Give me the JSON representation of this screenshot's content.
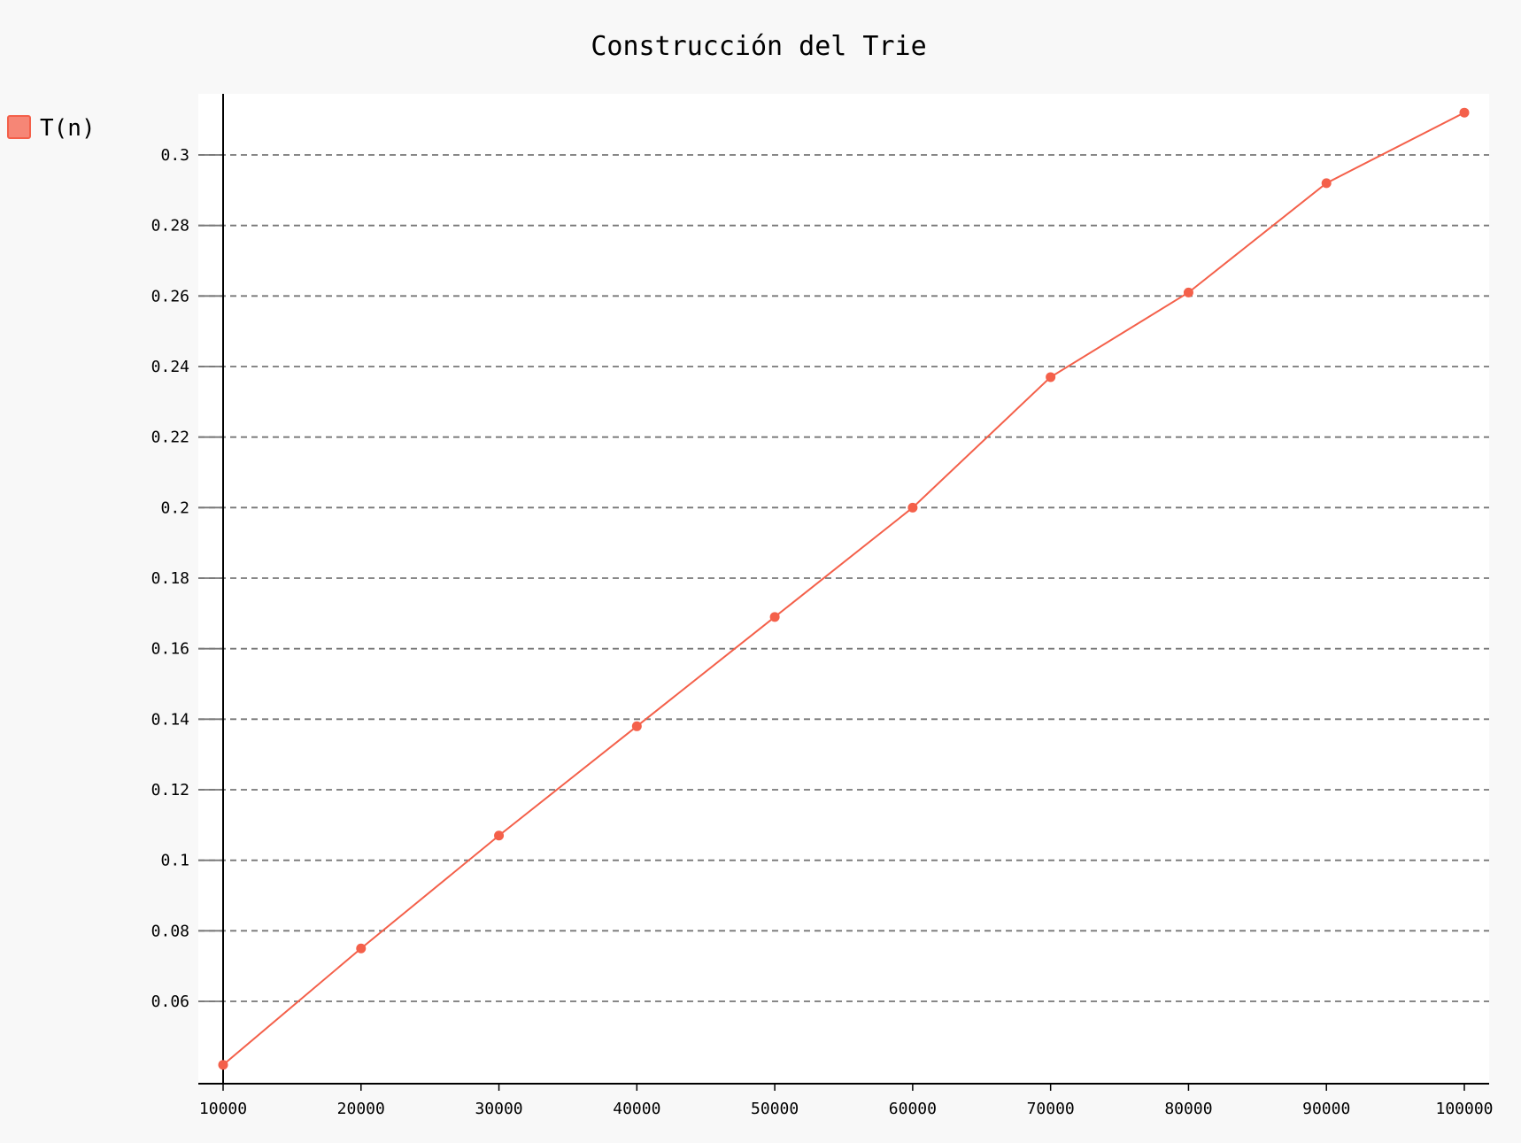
{
  "chart_data": {
    "type": "line",
    "title": "Construcción del Trie",
    "xlabel": "",
    "ylabel": "",
    "x": [
      10000,
      20000,
      30000,
      40000,
      50000,
      60000,
      70000,
      80000,
      90000,
      100000
    ],
    "x_ticks": [
      "10000",
      "20000",
      "30000",
      "40000",
      "50000",
      "60000",
      "70000",
      "80000",
      "90000",
      "100000"
    ],
    "y_ticks": [
      "0.06",
      "0.08",
      "0.1",
      "0.12",
      "0.14",
      "0.16",
      "0.18",
      "0.2",
      "0.22",
      "0.24",
      "0.26",
      "0.28",
      "0.3"
    ],
    "y_tick_values": [
      0.06,
      0.08,
      0.1,
      0.12,
      0.14,
      0.16,
      0.18,
      0.2,
      0.22,
      0.24,
      0.26,
      0.28,
      0.3
    ],
    "series": [
      {
        "name": "T(n)",
        "values": [
          0.042,
          0.075,
          0.107,
          0.138,
          0.169,
          0.2,
          0.237,
          0.261,
          0.292,
          0.312
        ],
        "color": "#f4604a"
      }
    ],
    "grid": "horizontal-dashed",
    "legend": "top-left",
    "background": "#f8f8f8",
    "plot_background": "#ffffff"
  }
}
